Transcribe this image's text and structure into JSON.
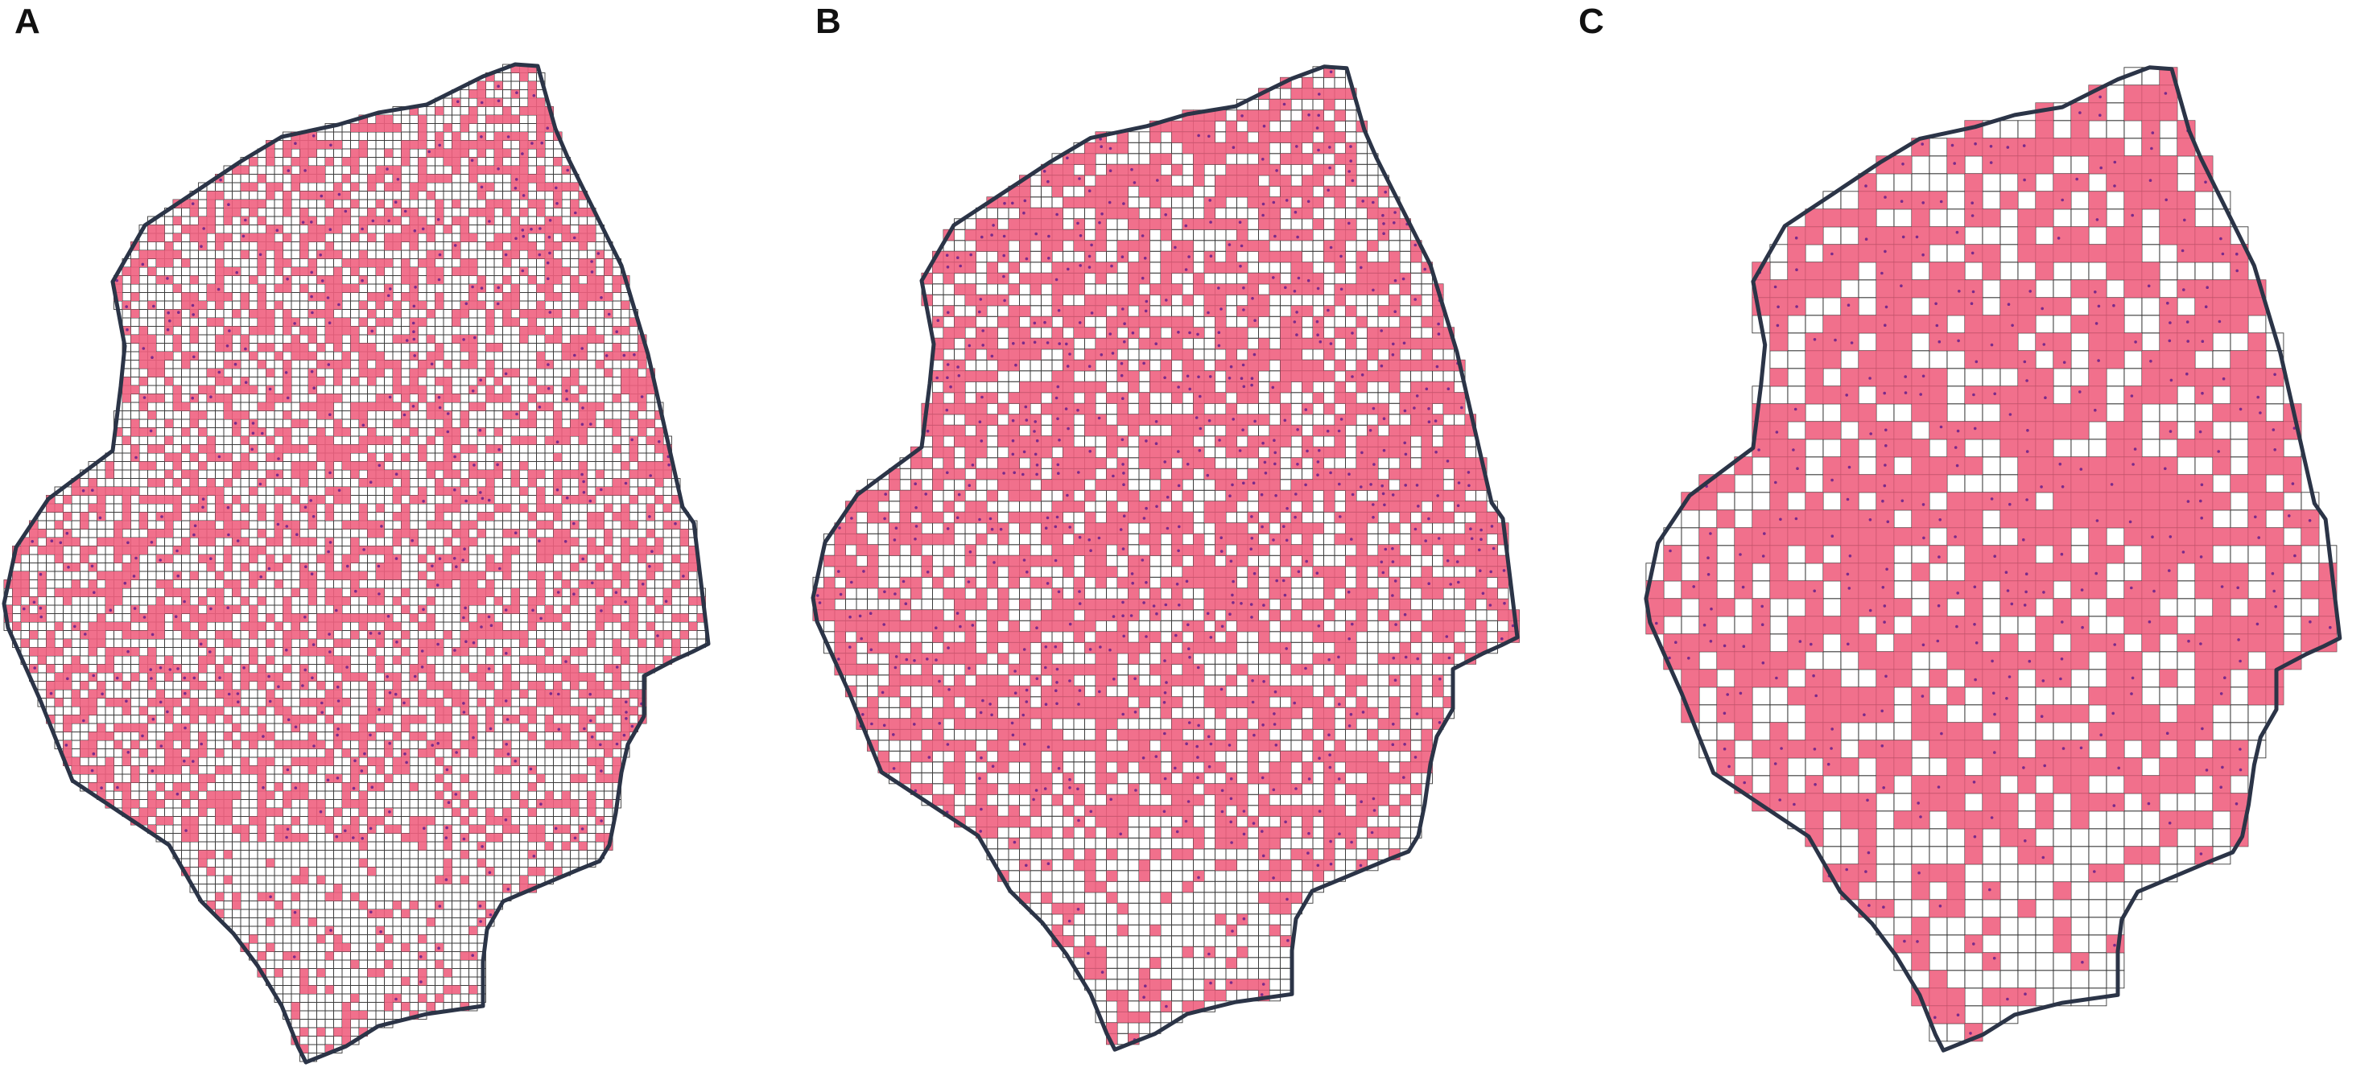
{
  "colors": {
    "cell_fill": "#f06080",
    "cell_dot": "#7a2a8a",
    "grid_line": "#3a3a3a",
    "outline": "#2b3447"
  },
  "panels": [
    {
      "label": "A",
      "occupancy": 0.42,
      "cluster_blocks": 1,
      "dot_density": 0.2
    },
    {
      "label": "B",
      "occupancy": 0.58,
      "cluster_blocks": 1,
      "dot_density": 0.35
    },
    {
      "label": "C",
      "occupancy": 0.66,
      "cluster_blocks": 2,
      "dot_density": 0.4
    }
  ]
}
